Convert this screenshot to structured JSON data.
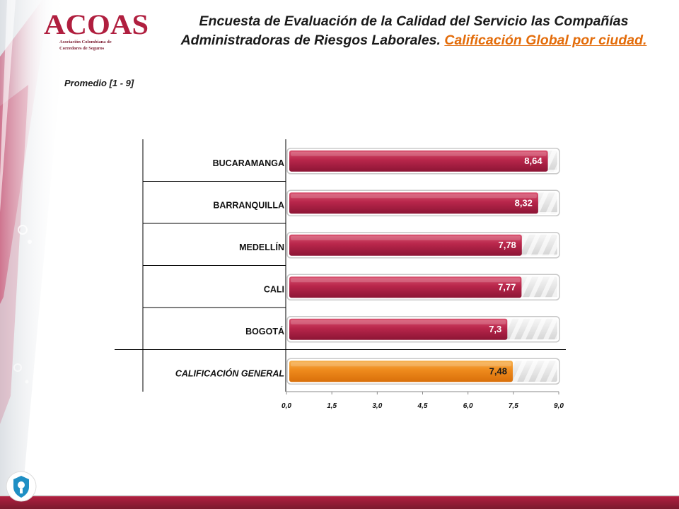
{
  "header": {
    "logo_text": "ACOAS",
    "logo_subtitle_1": "Asociación Colombiana de",
    "logo_subtitle_2": "Corredores de Seguros",
    "title_main": "Encuesta de Evaluación de la Calidad del Servicio las Compañías Administradoras de Riesgos Laborales.",
    "title_link": "Calificación Global por ciudad.",
    "subtitle": "Promedio  [1 - 9]"
  },
  "colors": {
    "bar_red": "#b8264b",
    "bar_orange": "#ee8a1c",
    "track": "#e6e6e6",
    "link": "#e36c0a",
    "logo": "#b01f3f"
  },
  "chart_data": {
    "type": "bar",
    "orientation": "horizontal",
    "categories": [
      "BUCARAMANGA",
      "BARRANQUILLA",
      "MEDELLÍN",
      "CALI",
      "BOGOTÁ",
      "CALIFICACIÓN GENERAL"
    ],
    "values": [
      8.64,
      8.32,
      7.78,
      7.77,
      7.3,
      7.48
    ],
    "value_labels": [
      "8,64",
      "8,32",
      "7,78",
      "7,77",
      "7,3",
      "7,48"
    ],
    "xlim": [
      0,
      9
    ],
    "xticks": [
      0,
      1.5,
      3,
      4.5,
      6,
      7.5,
      9
    ],
    "xtick_labels": [
      "0,0",
      "1,5",
      "3,0",
      "4,5",
      "6,0",
      "7,5",
      "9,0"
    ],
    "highlight_category": "CALIFICACIÓN GENERAL",
    "title": "",
    "xlabel": "",
    "ylabel": "",
    "grid": false
  }
}
